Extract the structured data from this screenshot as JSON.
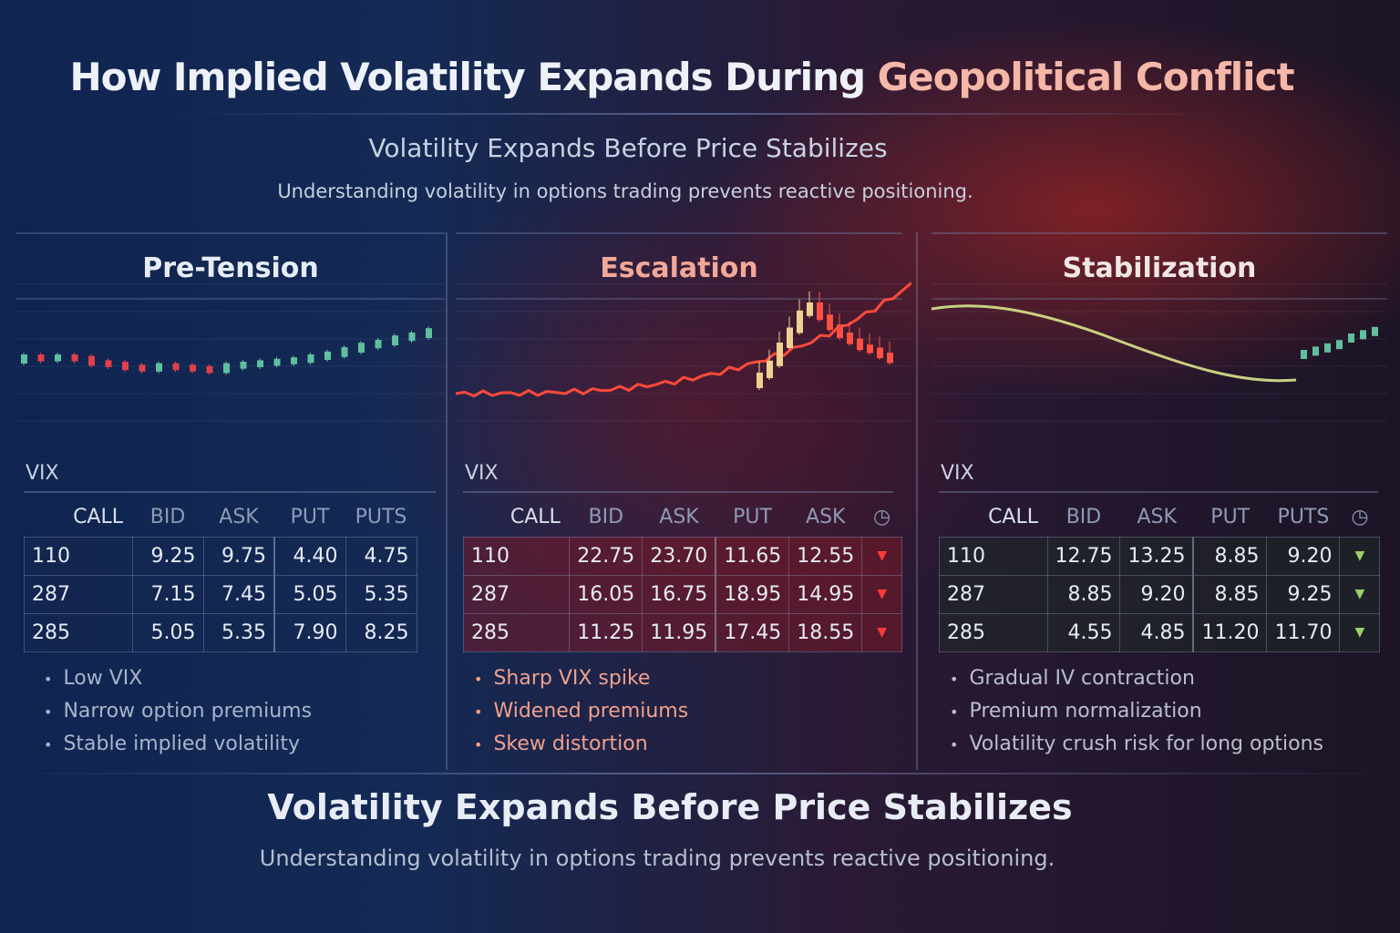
{
  "header": {
    "title_main": "How Implied Volatility Expands During ",
    "title_highlight": "Geopolitical Conflict",
    "subtitle": "Volatility Expands Before Price Stabilizes",
    "description": "Understanding volatility in options trading prevents reactive positioning."
  },
  "colors": {
    "up": "#5fc0a0",
    "down": "#e0404a",
    "spike": "#ff4a3a",
    "curve": "#c8d080",
    "pre_header": "#e6ecf6",
    "esc_header": "#f2a898",
    "stab_header": "#f0e6e6"
  },
  "panels": [
    {
      "title": "Pre-Tension",
      "vix_label": "VIX",
      "columns": [
        "CALL",
        "BID",
        "ASK",
        "PUT",
        "PUTS"
      ],
      "rows": [
        [
          "110",
          "9.25",
          "9.75",
          "4.40",
          "4.75"
        ],
        [
          "287",
          "7.15",
          "7.45",
          "5.05",
          "5.35"
        ],
        [
          "285",
          "5.05",
          "5.35",
          "7.90",
          "8.25"
        ]
      ],
      "bullets": [
        "Low VIX",
        "Narrow option premiums",
        "Stable implied volatility"
      ],
      "candles": [
        50,
        49,
        50,
        49,
        46,
        45,
        43,
        42,
        44,
        43,
        42,
        41,
        44,
        45,
        46,
        47,
        48,
        50,
        52,
        55,
        58,
        60,
        63,
        65,
        68
      ]
    },
    {
      "title": "Escalation",
      "vix_label": "VIX",
      "columns": [
        "CALL",
        "BID",
        "ASK",
        "PUT",
        "ASK"
      ],
      "clock_icon": "clock-icon",
      "rows": [
        [
          "110",
          "22.75",
          "23.70",
          "11.65",
          "12.55"
        ],
        [
          "287",
          "16.05",
          "16.75",
          "18.95",
          "14.95"
        ],
        [
          "285",
          "11.25",
          "11.95",
          "17.45",
          "18.55"
        ]
      ],
      "trend": "down",
      "bullets": [
        "Sharp VIX spike",
        "Widened premiums",
        "Skew distortion"
      ],
      "candles": [
        30,
        42,
        60,
        75,
        92,
        100,
        88,
        78,
        70,
        64,
        58,
        55,
        50,
        45
      ]
    },
    {
      "title": "Stabilization",
      "vix_label": "VIX",
      "columns": [
        "CALL",
        "BID",
        "ASK",
        "PUT",
        "PUTS"
      ],
      "clock_icon": "clock-icon",
      "rows": [
        [
          "110",
          "12.75",
          "13.25",
          "8.85",
          "9.20"
        ],
        [
          "287",
          "8.85",
          "9.20",
          "8.85",
          "9.25"
        ],
        [
          "285",
          "4.55",
          "4.85",
          "11.20",
          "11.70"
        ]
      ],
      "trend": "up",
      "bullets": [
        "Gradual IV contraction",
        "Premium normalization",
        "Volatility crush risk for long options"
      ],
      "candles": [
        40,
        42,
        44,
        46,
        50,
        52,
        54
      ]
    }
  ],
  "footer": {
    "title": "Volatility Expands Before Price Stabilizes",
    "description": "Understanding volatility in options trading prevents reactive positioning."
  }
}
